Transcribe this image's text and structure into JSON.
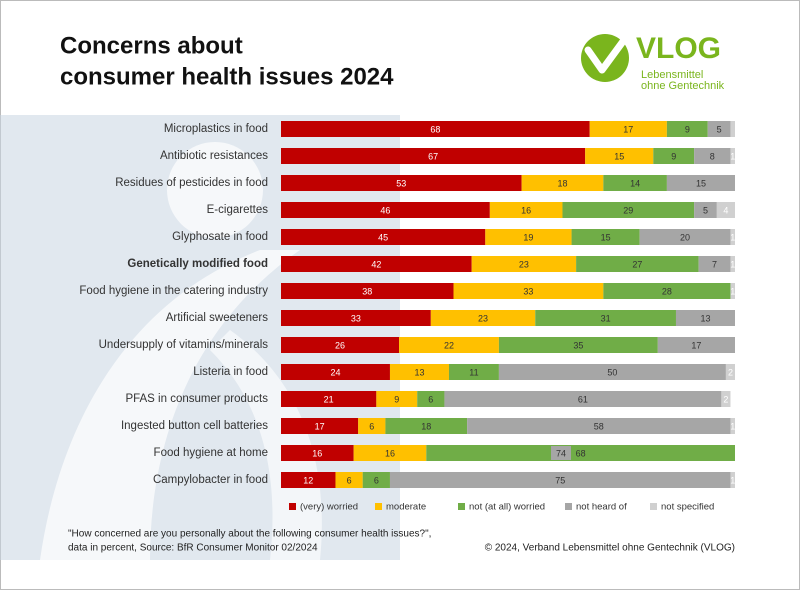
{
  "chart_data": {
    "type": "stacked_bar_horizontal",
    "title_lines": [
      "Concerns about",
      "consumer health issues 2024"
    ],
    "logo": {
      "name": "VLOG",
      "tagline": [
        "Lebensmittel",
        "ohne Gentechnik"
      ]
    },
    "categories": [
      "Microplastics in food",
      "Antibiotic resistances",
      "Residues of pesticides in food",
      "E-cigarettes",
      "Glyphosate in food",
      "Genetically modified food",
      "Food hygiene in the catering industry",
      "Artificial sweeteners",
      "Undersupply of vitamins/minerals",
      "Listeria in food",
      "PFAS in consumer products",
      "Ingested button cell batteries",
      "Food hygiene at home",
      "Campylobacter in food"
    ],
    "category_colors": [
      "#333333",
      "#333333",
      "#333333",
      "#333333",
      "#333333",
      "#c00000",
      "#333333",
      "#333333",
      "#333333",
      "#333333",
      "#333333",
      "#333333",
      "#333333",
      "#333333"
    ],
    "series": [
      {
        "name": "(very) worried",
        "color": "#c00000",
        "label_color": "#ffffff",
        "values": [
          68,
          67,
          53,
          46,
          45,
          42,
          38,
          33,
          26,
          24,
          21,
          17,
          16,
          12
        ]
      },
      {
        "name": "moderate",
        "color": "#ffc000",
        "label_color": "#333333",
        "values": [
          17,
          15,
          18,
          16,
          19,
          23,
          33,
          23,
          22,
          13,
          9,
          6,
          16,
          6
        ]
      },
      {
        "name": "not (at all) worried",
        "color": "#70ad47",
        "label_color": "#333333",
        "values": [
          9,
          9,
          14,
          29,
          15,
          27,
          28,
          31,
          35,
          11,
          6,
          18,
          68,
          6
        ]
      },
      {
        "name": "not heard of",
        "color": "#a6a6a6",
        "label_color": "#333333",
        "values": [
          5,
          8,
          15,
          5,
          20,
          7,
          null,
          13,
          17,
          50,
          61,
          58,
          null,
          75
        ]
      },
      {
        "name": "not specified",
        "color": "#d0d0d0",
        "label_color": "#ffffff",
        "values": [
          1,
          1,
          null,
          4,
          1,
          1,
          1,
          null,
          null,
          2,
          2,
          1,
          null,
          1
        ],
        "value_labels": [
          null,
          "1",
          null,
          "4",
          "1",
          "1",
          "1",
          null,
          null,
          "2",
          "2",
          "1",
          null,
          "1"
        ]
      }
    ],
    "xlim": [
      0,
      100
    ],
    "annotations": [
      "74"
    ],
    "footnote": [
      "\"How concerned  are you personally about the following consumer  health issues?\",",
      "data in percent,  Source:  BfR Consumer  Monitor 02/2024"
    ],
    "copyright": "© 2024, Verband  Lebensmittel  ohne Gentechnik  (VLOG)"
  }
}
